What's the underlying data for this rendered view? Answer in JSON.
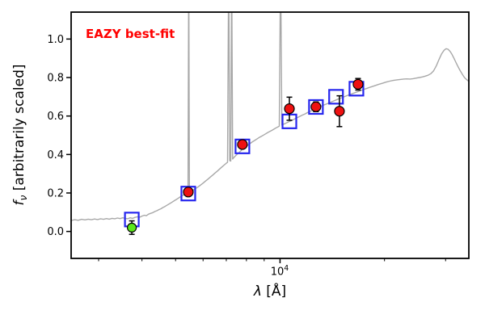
{
  "chart_data": {
    "type": "line+scatter",
    "annotation": "EAZY best-fit",
    "annotation_color": "#ff0000",
    "xlabel_symbol": "λ",
    "xlabel_rest": " [Å]",
    "ylabel_symbol": "f",
    "ylabel_sub": "ν",
    "ylabel_rest": " [arbitrarily scaled]",
    "xscale": "log",
    "xlim": [
      2500,
      35000
    ],
    "ylim": [
      -0.14,
      1.14
    ],
    "xticks_major": [
      10000
    ],
    "xtick_base": "10",
    "xtick_exp": "4",
    "xticks_minor": [
      3000,
      4000,
      5000,
      6000,
      7000,
      8000,
      9000,
      20000,
      30000
    ],
    "yticks": [
      0.0,
      0.2,
      0.4,
      0.6,
      0.8,
      1.0
    ],
    "ytick_labels": [
      "0.0",
      "0.2",
      "0.4",
      "0.6",
      "0.8",
      "1.0"
    ],
    "grid": false,
    "legend": "none",
    "colors": {
      "spectrum": "#a8a8a8",
      "model_marker": "#2626ee",
      "observed_marker": "#ee1111",
      "flagged_marker": "#5ce81a",
      "error_bar": "#000000",
      "axes": "#000000"
    },
    "series": {
      "spectrum": {
        "name": "model-spectrum",
        "points": [
          [
            2500,
            0.057
          ],
          [
            2560,
            0.061
          ],
          [
            2620,
            0.058
          ],
          [
            2680,
            0.063
          ],
          [
            2740,
            0.06
          ],
          [
            2800,
            0.064
          ],
          [
            2860,
            0.061
          ],
          [
            2920,
            0.065
          ],
          [
            2980,
            0.062
          ],
          [
            3040,
            0.066
          ],
          [
            3100,
            0.063
          ],
          [
            3160,
            0.067
          ],
          [
            3220,
            0.064
          ],
          [
            3280,
            0.068
          ],
          [
            3340,
            0.066
          ],
          [
            3400,
            0.07
          ],
          [
            3460,
            0.067
          ],
          [
            3520,
            0.071
          ],
          [
            3580,
            0.068
          ],
          [
            3640,
            0.066
          ],
          [
            3700,
            0.071
          ],
          [
            3760,
            0.068
          ],
          [
            3820,
            0.073
          ],
          [
            3880,
            0.076
          ],
          [
            3940,
            0.074
          ],
          [
            4000,
            0.08
          ],
          [
            4060,
            0.084
          ],
          [
            4120,
            0.082
          ],
          [
            4180,
            0.09
          ],
          [
            4240,
            0.094
          ],
          [
            4300,
            0.098
          ],
          [
            4360,
            0.104
          ],
          [
            4420,
            0.108
          ],
          [
            4480,
            0.114
          ],
          [
            4540,
            0.118
          ],
          [
            4600,
            0.125
          ],
          [
            4660,
            0.13
          ],
          [
            4720,
            0.136
          ],
          [
            4780,
            0.142
          ],
          [
            4840,
            0.148
          ],
          [
            4900,
            0.154
          ],
          [
            4960,
            0.16
          ],
          [
            5020,
            0.166
          ],
          [
            5080,
            0.172
          ],
          [
            5140,
            0.178
          ],
          [
            5200,
            0.184
          ],
          [
            5260,
            0.189
          ],
          [
            5320,
            0.193
          ],
          [
            5380,
            0.197
          ],
          [
            5430,
            0.2
          ],
          [
            5455,
            1.4
          ],
          [
            5480,
            0.203
          ],
          [
            5540,
            0.208
          ],
          [
            5600,
            0.214
          ],
          [
            5700,
            0.222
          ],
          [
            5800,
            0.231
          ],
          [
            5900,
            0.241
          ],
          [
            6000,
            0.251
          ],
          [
            6100,
            0.262
          ],
          [
            6200,
            0.272
          ],
          [
            6300,
            0.283
          ],
          [
            6400,
            0.293
          ],
          [
            6500,
            0.304
          ],
          [
            6600,
            0.314
          ],
          [
            6700,
            0.325
          ],
          [
            6800,
            0.335
          ],
          [
            6900,
            0.345
          ],
          [
            7000,
            0.355
          ],
          [
            7060,
            0.36
          ],
          [
            7110,
            1.4
          ],
          [
            7160,
            0.368
          ],
          [
            7210,
            0.366
          ],
          [
            7255,
            1.4
          ],
          [
            7300,
            0.376
          ],
          [
            7360,
            0.384
          ],
          [
            7420,
            0.391
          ],
          [
            7480,
            0.397
          ],
          [
            7540,
            0.403
          ],
          [
            7600,
            0.409
          ],
          [
            7700,
            0.418
          ],
          [
            7800,
            0.427
          ],
          [
            7900,
            0.435
          ],
          [
            8000,
            0.443
          ],
          [
            8120,
            0.452
          ],
          [
            8240,
            0.46
          ],
          [
            8360,
            0.468
          ],
          [
            8480,
            0.475
          ],
          [
            8600,
            0.482
          ],
          [
            8720,
            0.489
          ],
          [
            8840,
            0.495
          ],
          [
            8960,
            0.501
          ],
          [
            9080,
            0.507
          ],
          [
            9200,
            0.513
          ],
          [
            9350,
            0.52
          ],
          [
            9500,
            0.527
          ],
          [
            9650,
            0.534
          ],
          [
            9800,
            0.541
          ],
          [
            9950,
            0.547
          ],
          [
            10035,
            1.4
          ],
          [
            10120,
            0.553
          ],
          [
            10250,
            0.558
          ],
          [
            10400,
            0.563
          ],
          [
            10600,
            0.57
          ],
          [
            10800,
            0.577
          ],
          [
            11000,
            0.584
          ],
          [
            11200,
            0.591
          ],
          [
            11400,
            0.598
          ],
          [
            11600,
            0.605
          ],
          [
            11800,
            0.611
          ],
          [
            12000,
            0.618
          ],
          [
            12200,
            0.624
          ],
          [
            12400,
            0.63
          ],
          [
            12600,
            0.636
          ],
          [
            12800,
            0.642
          ],
          [
            13000,
            0.647
          ],
          [
            13200,
            0.653
          ],
          [
            13500,
            0.66
          ],
          [
            13800,
            0.667
          ],
          [
            14100,
            0.674
          ],
          [
            14400,
            0.681
          ],
          [
            14700,
            0.688
          ],
          [
            15000,
            0.694
          ],
          [
            15400,
            0.702
          ],
          [
            15800,
            0.71
          ],
          [
            16200,
            0.717
          ],
          [
            16600,
            0.724
          ],
          [
            17000,
            0.731
          ],
          [
            17400,
            0.738
          ],
          [
            17800,
            0.744
          ],
          [
            18200,
            0.75
          ],
          [
            18700,
            0.757
          ],
          [
            19200,
            0.764
          ],
          [
            19700,
            0.77
          ],
          [
            20200,
            0.776
          ],
          [
            20700,
            0.781
          ],
          [
            21200,
            0.785
          ],
          [
            21700,
            0.788
          ],
          [
            22200,
            0.79
          ],
          [
            22700,
            0.792
          ],
          [
            23200,
            0.793
          ],
          [
            23700,
            0.792
          ],
          [
            24200,
            0.794
          ],
          [
            24700,
            0.797
          ],
          [
            25200,
            0.8
          ],
          [
            25700,
            0.803
          ],
          [
            26200,
            0.807
          ],
          [
            26700,
            0.812
          ],
          [
            27200,
            0.82
          ],
          [
            27700,
            0.835
          ],
          [
            28200,
            0.86
          ],
          [
            28700,
            0.893
          ],
          [
            29200,
            0.922
          ],
          [
            29700,
            0.942
          ],
          [
            30100,
            0.95
          ],
          [
            30500,
            0.947
          ],
          [
            30900,
            0.936
          ],
          [
            31300,
            0.92
          ],
          [
            31700,
            0.901
          ],
          [
            32100,
            0.88
          ],
          [
            32500,
            0.86
          ],
          [
            33000,
            0.838
          ],
          [
            33500,
            0.818
          ],
          [
            34000,
            0.8
          ],
          [
            34500,
            0.789
          ],
          [
            35000,
            0.78
          ]
        ]
      },
      "model_photometry": {
        "name": "model-photometry-squares",
        "points": [
          [
            3740,
            0.062
          ],
          [
            5440,
            0.197
          ],
          [
            7790,
            0.442
          ],
          [
            10640,
            0.572
          ],
          [
            12690,
            0.647
          ],
          [
            14500,
            0.7
          ],
          [
            16600,
            0.742
          ]
        ]
      },
      "observed_photometry": {
        "name": "observed-photometry-circles",
        "points": [
          [
            5440,
            0.205,
            0.02
          ],
          [
            7790,
            0.452,
            0.02
          ],
          [
            10640,
            0.638,
            0.06
          ],
          [
            12690,
            0.648,
            0.025
          ],
          [
            14830,
            0.625,
            0.08
          ],
          [
            16780,
            0.765,
            0.03
          ]
        ]
      },
      "flagged_photometry": {
        "name": "flagged-photometry-circle",
        "points": [
          [
            3740,
            0.02,
            0.035
          ]
        ]
      }
    }
  }
}
